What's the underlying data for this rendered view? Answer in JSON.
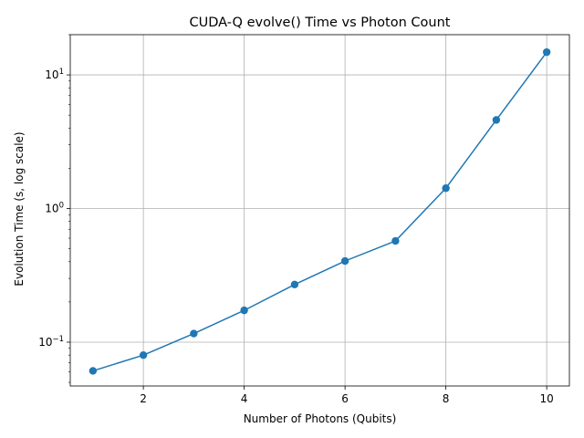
{
  "chart_data": {
    "type": "line",
    "title": "CUDA-Q evolve() Time vs Photon Count",
    "xlabel": "Number of Photons (Qubits)",
    "ylabel": "Evolution Time (s, log scale)",
    "x_scale": "linear",
    "y_scale": "log",
    "xlim": [
      0.55,
      10.45
    ],
    "ylim": [
      0.047,
      20
    ],
    "x_ticks": [
      2,
      4,
      6,
      8,
      10
    ],
    "x_tick_labels": [
      "2",
      "4",
      "6",
      "8",
      "10"
    ],
    "y_ticks": [
      {
        "value": 0.1,
        "base": "10",
        "exp": "−1"
      },
      {
        "value": 1,
        "base": "10",
        "exp": "0"
      },
      {
        "value": 10,
        "base": "10",
        "exp": "1"
      }
    ],
    "grid": true,
    "legend": "none",
    "colors": {
      "series": "#1f77b4",
      "grid": "#b0b0b0",
      "axes": "#000000"
    },
    "series": [
      {
        "marker": "circle",
        "x": [
          1,
          2,
          3,
          4,
          5,
          6,
          7,
          8,
          9,
          10
        ],
        "y": [
          0.061,
          0.08,
          0.116,
          0.173,
          0.27,
          0.405,
          0.572,
          1.42,
          4.6,
          14.8
        ]
      }
    ]
  }
}
